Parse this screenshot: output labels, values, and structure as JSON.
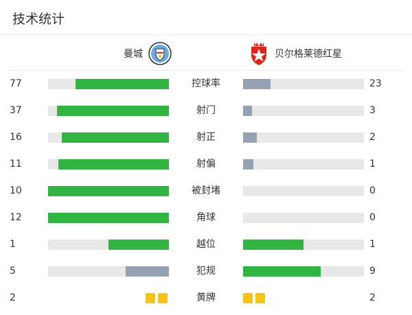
{
  "title": "技术统计",
  "teams": {
    "home": {
      "name": "曼城",
      "logo": "manchester-city-crest-icon"
    },
    "away": {
      "name": "贝尔格莱德红星",
      "logo": "red-star-belgrade-crest-icon"
    }
  },
  "colors": {
    "leader": "#2fb540",
    "trailer": "#94a2b4",
    "track": "#e8e8e8",
    "yellow_card": "#f7c414"
  },
  "stats": [
    {
      "label": "控球率",
      "home": "77",
      "away": "23",
      "home_fraction": 0.77,
      "away_fraction": 0.23,
      "home_color": "green",
      "away_color": "gray"
    },
    {
      "label": "射门",
      "home": "37",
      "away": "3",
      "home_fraction": 0.925,
      "away_fraction": 0.075,
      "home_color": "green",
      "away_color": "gray"
    },
    {
      "label": "射正",
      "home": "16",
      "away": "2",
      "home_fraction": 0.889,
      "away_fraction": 0.111,
      "home_color": "green",
      "away_color": "gray"
    },
    {
      "label": "射偏",
      "home": "11",
      "away": "1",
      "home_fraction": 0.917,
      "away_fraction": 0.083,
      "home_color": "green",
      "away_color": "gray"
    },
    {
      "label": "被封堵",
      "home": "10",
      "away": "0",
      "home_fraction": 1.0,
      "away_fraction": 0.0,
      "home_color": "green",
      "away_color": "gray"
    },
    {
      "label": "角球",
      "home": "12",
      "away": "0",
      "home_fraction": 1.0,
      "away_fraction": 0.0,
      "home_color": "green",
      "away_color": "gray"
    },
    {
      "label": "越位",
      "home": "1",
      "away": "1",
      "home_fraction": 0.5,
      "away_fraction": 0.5,
      "home_color": "green",
      "away_color": "green"
    },
    {
      "label": "犯规",
      "home": "5",
      "away": "9",
      "home_fraction": 0.357,
      "away_fraction": 0.643,
      "home_color": "gray",
      "away_color": "green"
    }
  ],
  "yellow_cards": {
    "label": "黄牌",
    "home": "2",
    "away": "2",
    "home_count": 2,
    "away_count": 2
  }
}
